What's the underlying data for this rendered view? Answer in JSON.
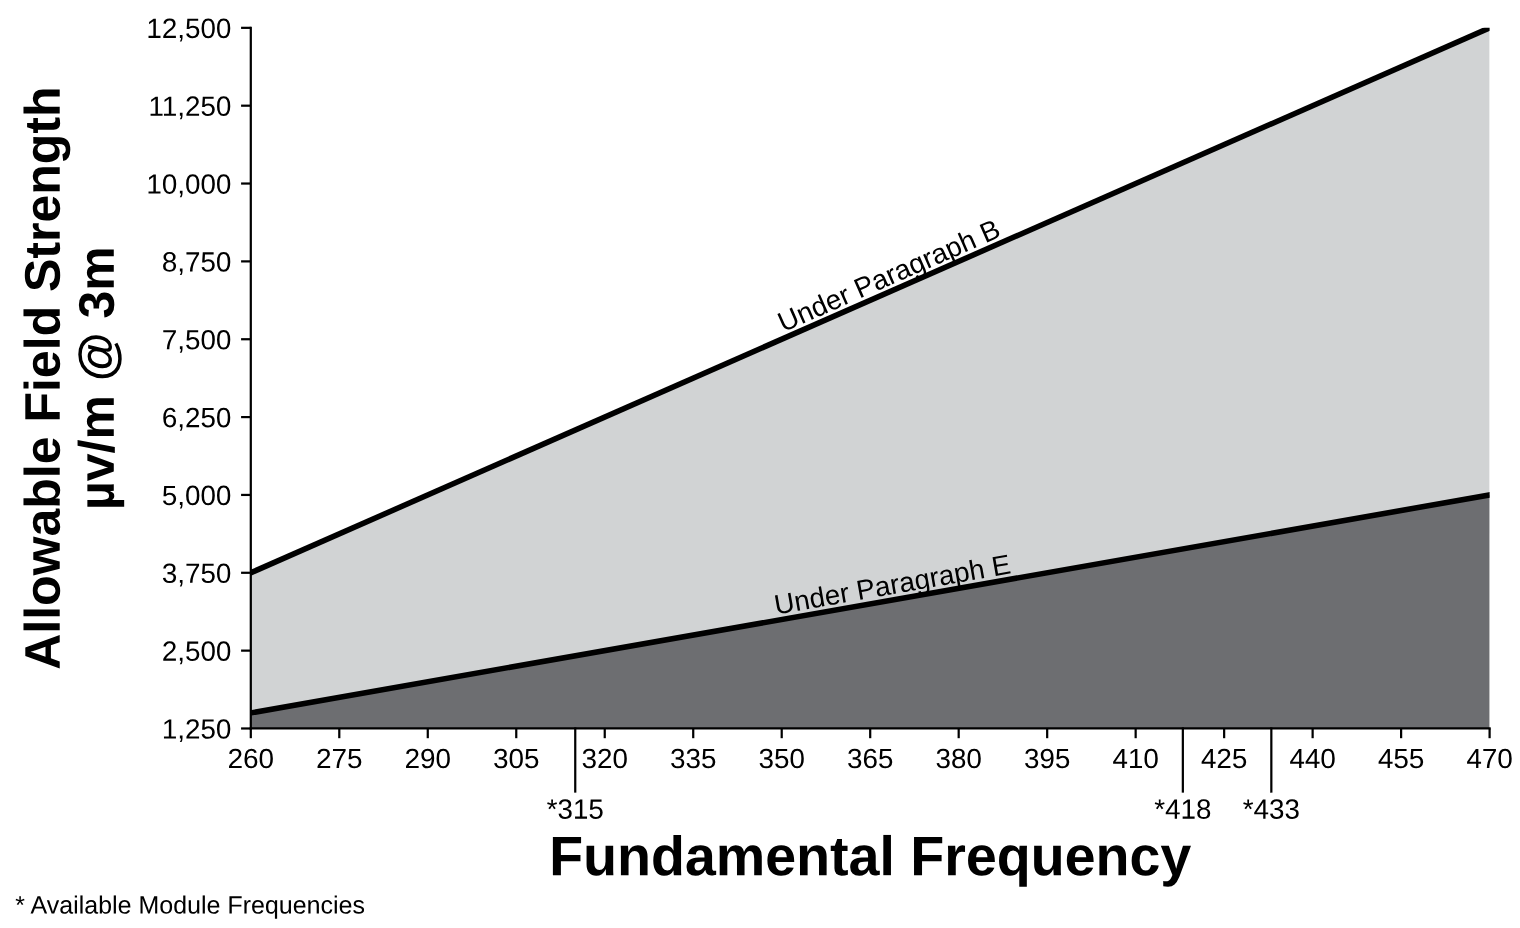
{
  "chart_data": {
    "type": "area",
    "xlabel": "Fundamental Frequency",
    "ylabel": "Allowable Field Strength\nµv/m @ 3m",
    "x": [
      260,
      470
    ],
    "series": [
      {
        "name": "Under Paragraph B",
        "color": "#d1d3d4",
        "values": [
          3750,
          12500
        ]
      },
      {
        "name": "Under Paragraph E",
        "color": "#6d6e71",
        "values": [
          1500,
          5000
        ]
      }
    ],
    "xlim": [
      260,
      470
    ],
    "ylim": [
      1250,
      12500
    ],
    "xticks": [
      260,
      275,
      290,
      305,
      320,
      335,
      350,
      365,
      380,
      395,
      410,
      425,
      440,
      455,
      470
    ],
    "yticks": [
      {
        "value": 1250,
        "label": "1,250"
      },
      {
        "value": 2500,
        "label": "2,500"
      },
      {
        "value": 3750,
        "label": "3,750"
      },
      {
        "value": 5000,
        "label": "5,000"
      },
      {
        "value": 6250,
        "label": "6,250"
      },
      {
        "value": 7500,
        "label": "7,500"
      },
      {
        "value": 8750,
        "label": "8,750"
      },
      {
        "value": 10000,
        "label": "10,000"
      },
      {
        "value": 11250,
        "label": "11,250"
      },
      {
        "value": 12500,
        "label": "12,500"
      }
    ],
    "ref_lines": [
      {
        "axis": "x",
        "value": 315,
        "label": "*315"
      },
      {
        "axis": "x",
        "value": 418,
        "label": "*418"
      },
      {
        "axis": "x",
        "value": 433,
        "label": "*433"
      }
    ],
    "annotations": [
      "* Available Module Frequencies"
    ],
    "grid": false,
    "legend": false
  }
}
